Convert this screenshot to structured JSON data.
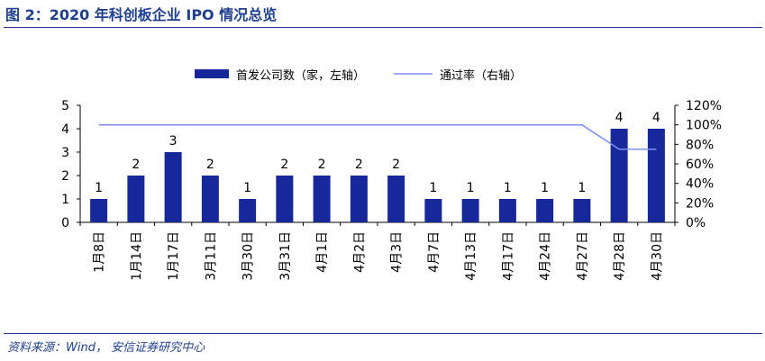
{
  "figure": {
    "title": "图 2：2020 年科创板企业 IPO 情况总览",
    "source": "资料来源：Wind， 安信证券研究中心"
  },
  "colors": {
    "bar": "#16289a",
    "line": "#7f8ff0",
    "accent": "#1f3f8f",
    "text": "#000000"
  },
  "chart_data": {
    "type": "bar",
    "categories": [
      "1月8日",
      "1月14日",
      "1月17日",
      "3月11日",
      "3月30日",
      "3月31日",
      "4月1日",
      "4月2日",
      "4月3日",
      "4月7日",
      "4月13日",
      "4月17日",
      "4月24日",
      "4月27日",
      "4月28日",
      "4月30日"
    ],
    "series": [
      {
        "name": "首发公司数（家，左轴）",
        "type": "bar",
        "axis": "left",
        "values": [
          1,
          2,
          3,
          2,
          1,
          2,
          2,
          2,
          2,
          1,
          1,
          1,
          1,
          1,
          4,
          4
        ],
        "data_labels": [
          "1",
          "2",
          "3",
          "2",
          "1",
          "2",
          "2",
          "2",
          "2",
          "1",
          "1",
          "1",
          "1",
          "1",
          "4",
          "4"
        ]
      },
      {
        "name": "通过率（右轴）",
        "type": "line",
        "axis": "right",
        "values": [
          100,
          100,
          100,
          100,
          100,
          100,
          100,
          100,
          100,
          100,
          100,
          100,
          100,
          100,
          75,
          75
        ]
      }
    ],
    "y_left": {
      "min": 0,
      "max": 5,
      "ticks": [
        "0",
        "1",
        "2",
        "3",
        "4",
        "5"
      ]
    },
    "y_right": {
      "min": 0,
      "max": 120,
      "ticks": [
        "0%",
        "20%",
        "40%",
        "60%",
        "80%",
        "100%",
        "120%"
      ]
    },
    "legend_position": "top",
    "grid": false
  }
}
